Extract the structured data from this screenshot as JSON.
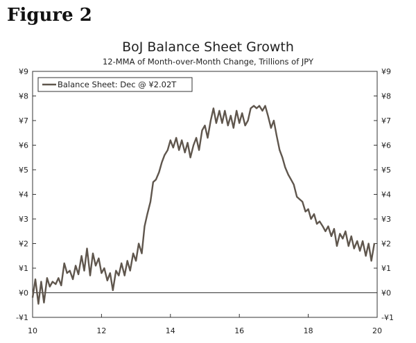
{
  "figure_label": "Figure 2",
  "chart_data": {
    "type": "line",
    "title": "BoJ Balance Sheet Growth",
    "subtitle": "12-MMA of Month-over-Month Change, Trillions of JPY",
    "xlabel": "",
    "ylabel": "",
    "xlim": [
      10,
      20
    ],
    "ylim": [
      -1,
      9
    ],
    "x_ticks": [
      10,
      12,
      14,
      16,
      18,
      20
    ],
    "x_tick_labels": [
      "10",
      "12",
      "14",
      "16",
      "18",
      "20"
    ],
    "y_ticks": [
      -1,
      0,
      1,
      2,
      3,
      4,
      5,
      6,
      7,
      8,
      9
    ],
    "y_tick_labels": [
      "-¥1",
      "¥0",
      "¥1",
      "¥2",
      "¥3",
      "¥4",
      "¥5",
      "¥6",
      "¥7",
      "¥8",
      "¥9"
    ],
    "right_axis_duplicate": true,
    "zero_line": true,
    "grid": false,
    "legend": {
      "position": "top-left",
      "entries": [
        "Balance Sheet: Dec @ ¥2.02T"
      ]
    },
    "series": [
      {
        "name": "Balance Sheet: Dec @ ¥2.02T",
        "color": "#5f564d",
        "points": [
          [
            10.0,
            -0.2
          ],
          [
            10.08,
            0.55
          ],
          [
            10.17,
            -0.45
          ],
          [
            10.25,
            0.45
          ],
          [
            10.33,
            -0.4
          ],
          [
            10.42,
            0.6
          ],
          [
            10.5,
            0.25
          ],
          [
            10.58,
            0.45
          ],
          [
            10.67,
            0.35
          ],
          [
            10.75,
            0.6
          ],
          [
            10.83,
            0.3
          ],
          [
            10.92,
            1.2
          ],
          [
            11.0,
            0.8
          ],
          [
            11.08,
            0.9
          ],
          [
            11.17,
            0.55
          ],
          [
            11.25,
            1.1
          ],
          [
            11.33,
            0.75
          ],
          [
            11.42,
            1.5
          ],
          [
            11.5,
            0.9
          ],
          [
            11.58,
            1.8
          ],
          [
            11.67,
            0.7
          ],
          [
            11.75,
            1.6
          ],
          [
            11.83,
            1.1
          ],
          [
            11.92,
            1.4
          ],
          [
            12.0,
            0.8
          ],
          [
            12.08,
            1.0
          ],
          [
            12.17,
            0.5
          ],
          [
            12.25,
            0.8
          ],
          [
            12.33,
            0.1
          ],
          [
            12.42,
            0.9
          ],
          [
            12.5,
            0.7
          ],
          [
            12.58,
            1.2
          ],
          [
            12.67,
            0.7
          ],
          [
            12.75,
            1.3
          ],
          [
            12.83,
            0.9
          ],
          [
            12.92,
            1.6
          ],
          [
            13.0,
            1.3
          ],
          [
            13.08,
            2.0
          ],
          [
            13.17,
            1.6
          ],
          [
            13.25,
            2.7
          ],
          [
            13.33,
            3.2
          ],
          [
            13.42,
            3.7
          ],
          [
            13.5,
            4.5
          ],
          [
            13.58,
            4.6
          ],
          [
            13.67,
            4.9
          ],
          [
            13.75,
            5.3
          ],
          [
            13.83,
            5.6
          ],
          [
            13.92,
            5.8
          ],
          [
            14.0,
            6.2
          ],
          [
            14.08,
            5.9
          ],
          [
            14.17,
            6.3
          ],
          [
            14.25,
            5.8
          ],
          [
            14.33,
            6.2
          ],
          [
            14.42,
            5.7
          ],
          [
            14.5,
            6.1
          ],
          [
            14.58,
            5.5
          ],
          [
            14.67,
            6.0
          ],
          [
            14.75,
            6.3
          ],
          [
            14.83,
            5.8
          ],
          [
            14.92,
            6.6
          ],
          [
            15.0,
            6.8
          ],
          [
            15.08,
            6.3
          ],
          [
            15.17,
            7.0
          ],
          [
            15.25,
            7.5
          ],
          [
            15.33,
            6.9
          ],
          [
            15.42,
            7.4
          ],
          [
            15.5,
            6.9
          ],
          [
            15.58,
            7.4
          ],
          [
            15.67,
            6.8
          ],
          [
            15.75,
            7.2
          ],
          [
            15.83,
            6.7
          ],
          [
            15.92,
            7.4
          ],
          [
            16.0,
            6.9
          ],
          [
            16.08,
            7.3
          ],
          [
            16.17,
            6.8
          ],
          [
            16.25,
            7.0
          ],
          [
            16.33,
            7.5
          ],
          [
            16.42,
            7.6
          ],
          [
            16.5,
            7.5
          ],
          [
            16.58,
            7.6
          ],
          [
            16.67,
            7.4
          ],
          [
            16.75,
            7.6
          ],
          [
            16.83,
            7.2
          ],
          [
            16.92,
            6.7
          ],
          [
            17.0,
            7.0
          ],
          [
            17.08,
            6.4
          ],
          [
            17.17,
            5.8
          ],
          [
            17.25,
            5.5
          ],
          [
            17.33,
            5.1
          ],
          [
            17.42,
            4.8
          ],
          [
            17.5,
            4.6
          ],
          [
            17.58,
            4.4
          ],
          [
            17.67,
            3.9
          ],
          [
            17.75,
            3.8
          ],
          [
            17.83,
            3.7
          ],
          [
            17.92,
            3.3
          ],
          [
            18.0,
            3.4
          ],
          [
            18.08,
            3.0
          ],
          [
            18.17,
            3.2
          ],
          [
            18.25,
            2.8
          ],
          [
            18.33,
            2.9
          ],
          [
            18.42,
            2.7
          ],
          [
            18.5,
            2.5
          ],
          [
            18.58,
            2.7
          ],
          [
            18.67,
            2.3
          ],
          [
            18.75,
            2.6
          ],
          [
            18.83,
            1.9
          ],
          [
            18.92,
            2.4
          ],
          [
            19.0,
            2.2
          ],
          [
            19.08,
            2.5
          ],
          [
            19.17,
            1.9
          ],
          [
            19.25,
            2.3
          ],
          [
            19.33,
            1.8
          ],
          [
            19.42,
            2.1
          ],
          [
            19.5,
            1.7
          ],
          [
            19.58,
            2.1
          ],
          [
            19.67,
            1.5
          ],
          [
            19.75,
            2.0
          ],
          [
            19.83,
            1.3
          ],
          [
            19.92,
            2.02
          ]
        ]
      }
    ]
  }
}
